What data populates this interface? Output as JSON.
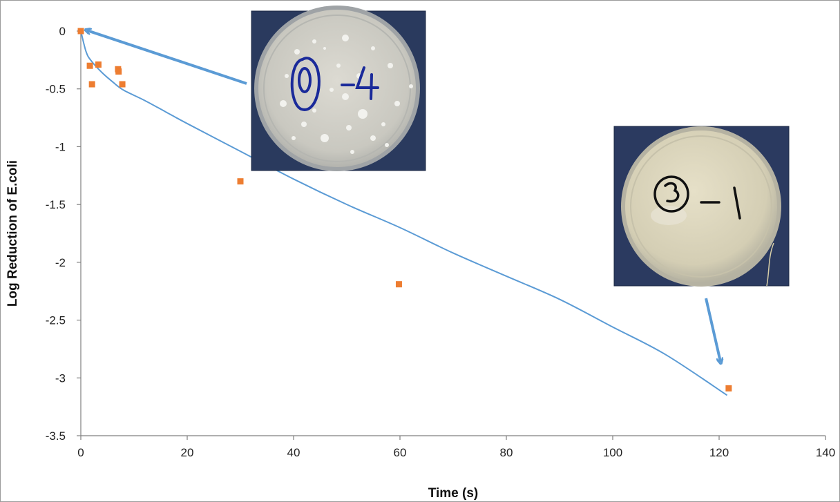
{
  "chart_data": {
    "type": "scatter",
    "xlabel": "Time (s)",
    "ylabel": "Log Reduction of E.coli",
    "xlim": [
      0,
      140
    ],
    "ylim": [
      -3.5,
      0
    ],
    "x_ticks": [
      0,
      20,
      40,
      60,
      80,
      100,
      120,
      140
    ],
    "y_ticks": [
      0,
      -0.5,
      -1,
      -1.5,
      -2,
      -2.5,
      -3,
      -3.5
    ],
    "x_tick_labels": [
      "0",
      "20",
      "40",
      "60",
      "80",
      "100",
      "120",
      "140"
    ],
    "y_tick_labels": [
      "0",
      "-0.5",
      "-1",
      "-1.5",
      "-2",
      "-2.5",
      "-3",
      "-3.5"
    ],
    "grid": false,
    "points": {
      "color": "#ed7d31",
      "x": [
        0,
        1.7,
        2.1,
        3.3,
        7,
        7.1,
        7.8,
        30,
        59.8,
        121.8
      ],
      "y": [
        0,
        -0.3,
        -0.46,
        -0.29,
        -0.33,
        -0.35,
        -0.46,
        -1.3,
        -2.19,
        -3.09
      ]
    },
    "trendline": {
      "color": "#5b9bd5",
      "model": "power-like decay fitted curve",
      "x": [
        0,
        1,
        2,
        4,
        6,
        8,
        12,
        16,
        20,
        30,
        40,
        50,
        60,
        70,
        80,
        90,
        100,
        110,
        121.5
      ],
      "y": [
        0,
        -0.18,
        -0.26,
        -0.36,
        -0.44,
        -0.51,
        -0.6,
        -0.7,
        -0.8,
        -1.04,
        -1.28,
        -1.5,
        -1.7,
        -1.92,
        -2.12,
        -2.32,
        -2.56,
        -2.8,
        -3.15
      ]
    },
    "annotations": [
      {
        "type": "photo",
        "content": "petri-dish-many-colonies",
        "label": "0 -4",
        "ink": "#1a2a9a",
        "arrow_to": [
          0,
          0
        ]
      },
      {
        "type": "photo",
        "content": "petri-dish-clear",
        "label": "3 -1",
        "ink": "#111111",
        "arrow_to": [
          120.5,
          -2.9
        ]
      }
    ]
  }
}
